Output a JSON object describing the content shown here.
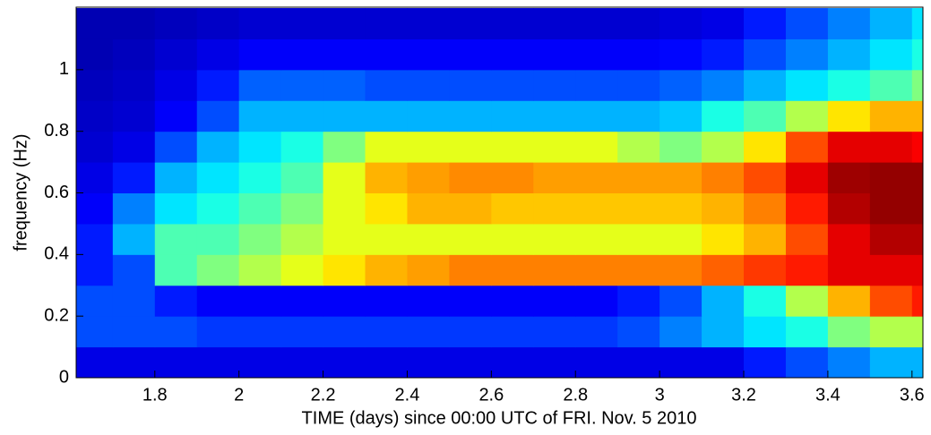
{
  "chart_data": {
    "type": "heatmap",
    "colormap": "jet",
    "xlabel": "TIME (days) since 00:00 UTC of FRI. Nov. 5 2010",
    "ylabel": "frequency (Hz)",
    "xlim": [
      1.613,
      3.626
    ],
    "ylim": [
      0,
      1.203
    ],
    "xticks": [
      1.8,
      2,
      2.2,
      2.4,
      2.6,
      2.8,
      3,
      3.2,
      3.4,
      3.6
    ],
    "yticks": [
      0,
      0.2,
      0.4,
      0.6,
      0.8,
      1
    ],
    "xbins": [
      1.6,
      1.7,
      1.8,
      1.9,
      2.0,
      2.1,
      2.2,
      2.3,
      2.4,
      2.5,
      2.6,
      2.7,
      2.8,
      2.9,
      3.0,
      3.1,
      3.2,
      3.3,
      3.4,
      3.5,
      3.6,
      3.7
    ],
    "ybins": [
      0,
      0.1,
      0.2,
      0.3,
      0.4,
      0.5,
      0.6,
      0.7,
      0.8,
      0.9,
      1.0,
      1.1,
      1.2
    ],
    "values": [
      [
        0.1,
        0.1,
        0.1,
        0.1,
        0.1,
        0.1,
        0.1,
        0.1,
        0.1,
        0.1,
        0.1,
        0.1,
        0.1,
        0.1,
        0.1,
        0.1,
        0.15,
        0.2,
        0.25,
        0.3,
        0.3
      ],
      [
        0.2,
        0.2,
        0.2,
        0.18,
        0.18,
        0.18,
        0.18,
        0.18,
        0.18,
        0.18,
        0.18,
        0.18,
        0.18,
        0.2,
        0.25,
        0.3,
        0.35,
        0.4,
        0.5,
        0.55,
        0.55
      ],
      [
        0.2,
        0.2,
        0.15,
        0.12,
        0.12,
        0.12,
        0.12,
        0.12,
        0.12,
        0.12,
        0.12,
        0.12,
        0.12,
        0.15,
        0.2,
        0.3,
        0.4,
        0.55,
        0.7,
        0.8,
        0.85
      ],
      [
        0.15,
        0.2,
        0.45,
        0.5,
        0.55,
        0.6,
        0.65,
        0.7,
        0.72,
        0.75,
        0.75,
        0.75,
        0.75,
        0.75,
        0.75,
        0.78,
        0.82,
        0.85,
        0.9,
        0.9,
        0.9
      ],
      [
        0.15,
        0.3,
        0.45,
        0.45,
        0.5,
        0.55,
        0.6,
        0.6,
        0.6,
        0.6,
        0.6,
        0.6,
        0.6,
        0.6,
        0.6,
        0.65,
        0.7,
        0.8,
        0.9,
        0.95,
        0.95
      ],
      [
        0.12,
        0.25,
        0.35,
        0.4,
        0.45,
        0.5,
        0.6,
        0.65,
        0.7,
        0.7,
        0.68,
        0.68,
        0.68,
        0.68,
        0.68,
        0.7,
        0.75,
        0.85,
        0.95,
        0.98,
        0.98
      ],
      [
        0.1,
        0.15,
        0.3,
        0.35,
        0.4,
        0.45,
        0.6,
        0.7,
        0.72,
        0.74,
        0.74,
        0.72,
        0.72,
        0.72,
        0.72,
        0.75,
        0.8,
        0.9,
        0.97,
        0.98,
        0.98
      ],
      [
        0.08,
        0.1,
        0.2,
        0.3,
        0.35,
        0.4,
        0.5,
        0.6,
        0.6,
        0.6,
        0.6,
        0.6,
        0.6,
        0.55,
        0.5,
        0.55,
        0.65,
        0.8,
        0.9,
        0.9,
        0.88
      ],
      [
        0.07,
        0.08,
        0.12,
        0.2,
        0.3,
        0.3,
        0.3,
        0.3,
        0.3,
        0.3,
        0.3,
        0.3,
        0.3,
        0.3,
        0.32,
        0.4,
        0.45,
        0.55,
        0.65,
        0.7,
        0.7
      ],
      [
        0.06,
        0.07,
        0.1,
        0.15,
        0.22,
        0.22,
        0.22,
        0.2,
        0.2,
        0.2,
        0.2,
        0.2,
        0.2,
        0.2,
        0.22,
        0.25,
        0.3,
        0.35,
        0.4,
        0.45,
        0.5
      ],
      [
        0.05,
        0.06,
        0.08,
        0.1,
        0.12,
        0.12,
        0.12,
        0.12,
        0.12,
        0.12,
        0.12,
        0.12,
        0.12,
        0.12,
        0.13,
        0.15,
        0.2,
        0.25,
        0.3,
        0.35,
        0.4
      ],
      [
        0.05,
        0.05,
        0.06,
        0.07,
        0.08,
        0.08,
        0.08,
        0.08,
        0.08,
        0.08,
        0.08,
        0.08,
        0.08,
        0.08,
        0.09,
        0.1,
        0.15,
        0.2,
        0.25,
        0.3,
        0.35
      ]
    ]
  }
}
